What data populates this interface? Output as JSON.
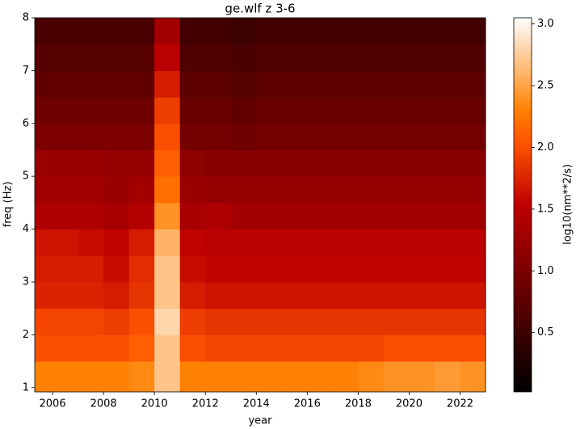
{
  "chart_data": {
    "type": "heatmap",
    "title": "ge.wlf z 3-6",
    "x_label": "year",
    "y_label": "freq (Hz)",
    "colorbar_label": "log10(nm**2/s)",
    "colormap": "gist_heat",
    "x_edges": [
      2005.3,
      2006,
      2007,
      2008,
      2009,
      2010,
      2011,
      2012,
      2013,
      2014,
      2015,
      2016,
      2017,
      2018,
      2019,
      2020,
      2021,
      2022,
      2023.0
    ],
    "y_edges": [
      0.92,
      1.5,
      2.0,
      2.5,
      3.0,
      3.5,
      4.0,
      4.5,
      5.0,
      5.5,
      6.0,
      6.5,
      7.0,
      7.5,
      8
    ],
    "z": [
      [
        2.3,
        2.3,
        2.3,
        2.3,
        2.35,
        2.7,
        2.3,
        2.3,
        2.3,
        2.3,
        2.3,
        2.3,
        2.3,
        2.35,
        2.4,
        2.4,
        2.45,
        2.4
      ],
      [
        2.0,
        2.0,
        2.0,
        2.0,
        2.1,
        2.7,
        2.0,
        1.95,
        1.95,
        1.95,
        1.95,
        1.95,
        1.95,
        1.95,
        2.0,
        2.0,
        2.0,
        2.0
      ],
      [
        1.95,
        1.95,
        1.95,
        1.9,
        2.0,
        2.8,
        1.9,
        1.85,
        1.85,
        1.85,
        1.85,
        1.85,
        1.85,
        1.85,
        1.85,
        1.85,
        1.85,
        1.85
      ],
      [
        1.75,
        1.75,
        1.75,
        1.7,
        1.85,
        2.7,
        1.7,
        1.65,
        1.65,
        1.65,
        1.65,
        1.65,
        1.65,
        1.65,
        1.65,
        1.65,
        1.65,
        1.65
      ],
      [
        1.7,
        1.7,
        1.7,
        1.6,
        1.8,
        2.7,
        1.6,
        1.55,
        1.55,
        1.55,
        1.55,
        1.55,
        1.55,
        1.55,
        1.55,
        1.55,
        1.55,
        1.55
      ],
      [
        1.65,
        1.65,
        1.6,
        1.55,
        1.7,
        2.6,
        1.55,
        1.5,
        1.5,
        1.5,
        1.5,
        1.5,
        1.5,
        1.5,
        1.5,
        1.5,
        1.5,
        1.5
      ],
      [
        1.4,
        1.4,
        1.4,
        1.35,
        1.45,
        2.4,
        1.35,
        1.4,
        1.3,
        1.3,
        1.3,
        1.3,
        1.3,
        1.3,
        1.3,
        1.3,
        1.3,
        1.3
      ],
      [
        1.3,
        1.3,
        1.3,
        1.25,
        1.3,
        2.2,
        1.25,
        1.2,
        1.2,
        1.2,
        1.2,
        1.2,
        1.2,
        1.2,
        1.2,
        1.2,
        1.2,
        1.2
      ],
      [
        1.25,
        1.25,
        1.25,
        1.2,
        1.2,
        2.1,
        1.15,
        1.1,
        1.1,
        1.1,
        1.1,
        1.1,
        1.1,
        1.1,
        1.1,
        1.1,
        1.1,
        1.1
      ],
      [
        1.0,
        1.0,
        1.0,
        1.0,
        1.0,
        2.0,
        0.95,
        0.95,
        0.9,
        0.95,
        0.95,
        0.95,
        0.95,
        0.95,
        0.95,
        0.95,
        0.95,
        0.95
      ],
      [
        0.9,
        0.9,
        0.9,
        0.9,
        0.9,
        1.9,
        0.85,
        0.85,
        0.8,
        0.85,
        0.85,
        0.85,
        0.85,
        0.85,
        0.85,
        0.85,
        0.85,
        0.85
      ],
      [
        0.8,
        0.8,
        0.8,
        0.8,
        0.8,
        1.7,
        0.75,
        0.75,
        0.7,
        0.75,
        0.75,
        0.75,
        0.75,
        0.75,
        0.75,
        0.75,
        0.75,
        0.75
      ],
      [
        0.7,
        0.7,
        0.7,
        0.7,
        0.7,
        1.5,
        0.65,
        0.65,
        0.6,
        0.65,
        0.65,
        0.65,
        0.65,
        0.65,
        0.65,
        0.65,
        0.65,
        0.65
      ],
      [
        0.6,
        0.6,
        0.6,
        0.6,
        0.6,
        1.3,
        0.55,
        0.55,
        0.5,
        0.55,
        0.55,
        0.55,
        0.55,
        0.55,
        0.55,
        0.55,
        0.55,
        0.55
      ]
    ],
    "xlim": [
      2005.3,
      2023.0
    ],
    "xticks": [
      2006,
      2008,
      2010,
      2012,
      2014,
      2016,
      2018,
      2020,
      2022
    ],
    "ylim": [
      0.92,
      8
    ],
    "yticks": [
      1,
      2,
      3,
      4,
      5,
      6,
      7,
      8
    ],
    "clim": [
      0.02,
      3.05
    ],
    "cticks": [
      0.5,
      {
        "value": 1.0,
        "label": "1.0"
      },
      1.5,
      {
        "value": 2.0,
        "label": "2.0"
      },
      2.5,
      {
        "value": 3.0,
        "label": "3.0"
      }
    ]
  }
}
